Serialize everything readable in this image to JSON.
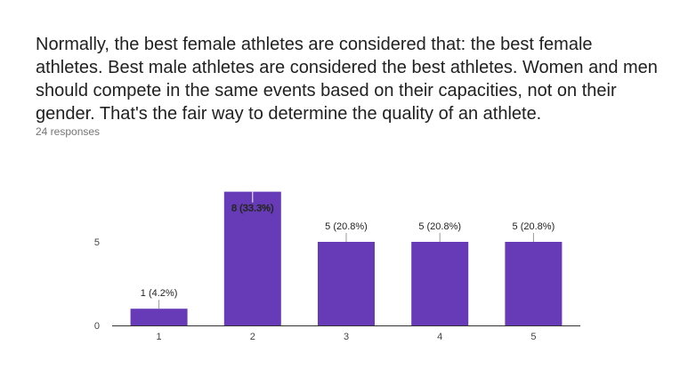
{
  "question": {
    "title": "Normally, the best female athletes are considered that: the best female athletes. Best male athletes are considered the best athletes. Women and men should compete in the same events based on their capacities, not on their gender. That's the fair way to determine the quality of an athlete.",
    "responses": "24 responses"
  },
  "colors": {
    "bar": "#673ab7",
    "axis": "#333333"
  },
  "chart_data": {
    "type": "bar",
    "categories": [
      "1",
      "2",
      "3",
      "4",
      "5"
    ],
    "values": [
      1,
      8,
      5,
      5,
      5
    ],
    "labels": [
      "1 (4.2%)",
      "8 (33.3%)",
      "5 (20.8%)",
      "5 (20.8%)",
      "5 (20.8%)"
    ],
    "yticks": [
      0,
      5
    ],
    "ylim": [
      0,
      8
    ],
    "grid": false
  }
}
